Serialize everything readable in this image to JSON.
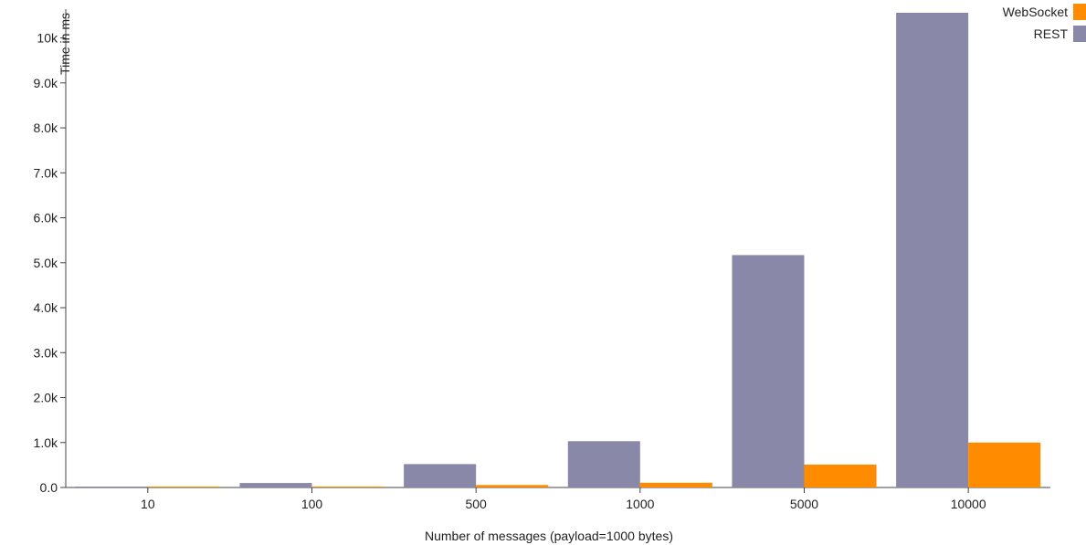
{
  "chart_data": {
    "type": "bar",
    "categories": [
      "10",
      "100",
      "500",
      "1000",
      "5000",
      "10000"
    ],
    "series": [
      {
        "name": "REST",
        "color": "#8a88a8",
        "values": [
          10,
          100,
          520,
          1030,
          5170,
          10560
        ]
      },
      {
        "name": "WebSocket",
        "color": "#ff8c00",
        "values": [
          3,
          15,
          55,
          105,
          510,
          1000
        ]
      }
    ],
    "legend_order": [
      "WebSocket",
      "REST"
    ],
    "legend_position": "top-right",
    "title": "",
    "xlabel": "Number of messages (payload=1000 bytes)",
    "ylabel": "Time in ms",
    "ylim": [
      0,
      10560
    ],
    "yticks": [
      {
        "value": 0,
        "label": "0.0"
      },
      {
        "value": 1000,
        "label": "1.0k"
      },
      {
        "value": 2000,
        "label": "2.0k"
      },
      {
        "value": 3000,
        "label": "3.0k"
      },
      {
        "value": 4000,
        "label": "4.0k"
      },
      {
        "value": 5000,
        "label": "5.0k"
      },
      {
        "value": 6000,
        "label": "6.0k"
      },
      {
        "value": 7000,
        "label": "7.0k"
      },
      {
        "value": 8000,
        "label": "8.0k"
      },
      {
        "value": 9000,
        "label": "9.0k"
      },
      {
        "value": 10000,
        "label": "10k"
      }
    ],
    "grid": false
  }
}
